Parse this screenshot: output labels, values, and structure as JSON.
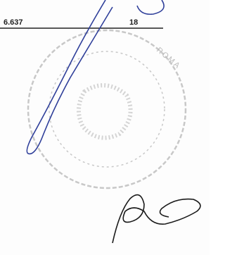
{
  "document": {
    "figures": [
      "6.637",
      "18"
    ],
    "stamp_text": "ROMA"
  }
}
